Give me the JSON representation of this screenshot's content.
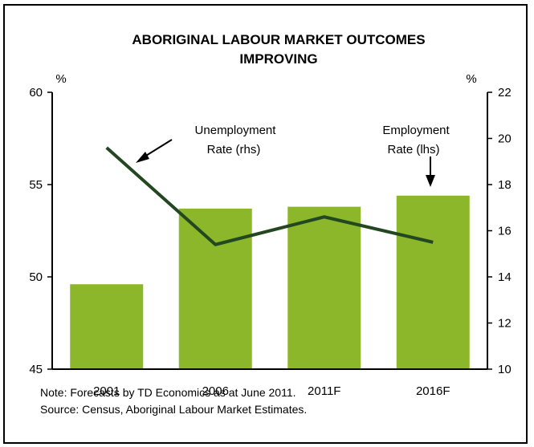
{
  "chart_data": {
    "type": "bar+line",
    "title_lines": [
      "ABORIGINAL LABOUR MARKET OUTCOMES",
      "IMPROVING"
    ],
    "categories": [
      "2001",
      "2006",
      "2011F",
      "2016F"
    ],
    "left_axis": {
      "unit": "%",
      "ylim": [
        45,
        60
      ],
      "ticks": [
        45,
        50,
        55,
        60
      ]
    },
    "right_axis": {
      "unit": "%",
      "ylim": [
        10,
        22
      ],
      "ticks": [
        10,
        12,
        14,
        16,
        18,
        20,
        22
      ]
    },
    "series": [
      {
        "name": "Employment Rate (lhs)",
        "type": "bar",
        "axis": "left",
        "values": [
          49.6,
          53.7,
          53.8,
          54.4
        ],
        "color": "#8db72b"
      },
      {
        "name": "Unemployment Rate (rhs)",
        "type": "line",
        "axis": "right",
        "values": [
          19.6,
          15.4,
          16.6,
          15.5
        ],
        "color": "#234721"
      }
    ],
    "annotations": [
      {
        "lines": [
          "Unemployment",
          "Rate (rhs)"
        ]
      },
      {
        "lines": [
          "Employment",
          "Rate (lhs)"
        ]
      }
    ]
  },
  "notes": {
    "note": "Note: Forecasts by TD Economics as at June 2011.",
    "source": "Source: Census, Aboriginal Labour Market Estimates."
  }
}
